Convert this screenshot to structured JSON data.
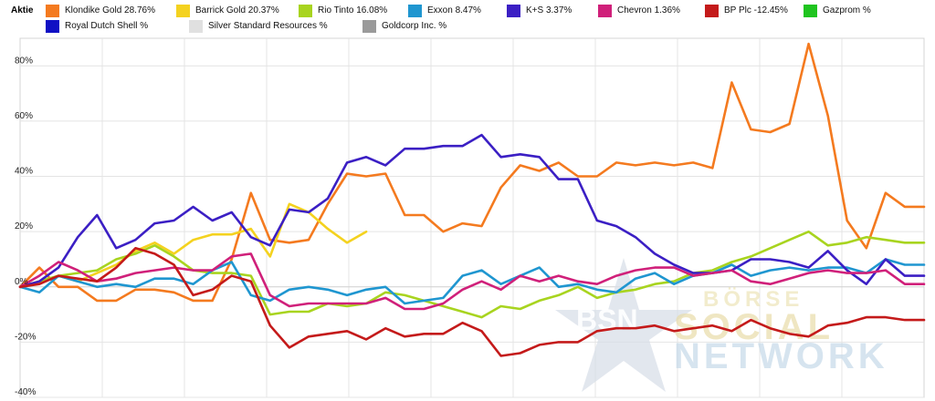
{
  "legend": {
    "heading": "Aktie",
    "items": [
      {
        "label": "Klondike Gold  28.76%",
        "color": "#f47a1f"
      },
      {
        "label": "Barrick Gold  20.37%",
        "color": "#f4d21f"
      },
      {
        "label": "Rio Tinto  16.08%",
        "color": "#a8d41f"
      },
      {
        "label": "Exxon  8.47%",
        "color": "#1f96d0"
      },
      {
        "label": "K+S  3.37%",
        "color": "#3b1fc4"
      },
      {
        "label": "Chevron  1.36%",
        "color": "#d0207a"
      },
      {
        "label": "BP Plc  -12.45%",
        "color": "#c41a1a"
      },
      {
        "label": "Gazprom  %",
        "color": "#1fc41f"
      },
      {
        "label": "Royal Dutch Shell  %",
        "color": "#1010c4"
      },
      {
        "label": "Silver Standard Resources  %",
        "color": "#e0e0e0"
      },
      {
        "label": "Goldcorp Inc.  %",
        "color": "#9a9a9a"
      }
    ]
  },
  "watermark": {
    "line1": "BÖRSE",
    "line2": "SOCIAL",
    "line3": "NETWORK",
    "star_text": "BSN"
  },
  "chart_data": {
    "type": "line",
    "ylim": [
      -40,
      90
    ],
    "yticks": [
      -40,
      -20,
      0,
      20,
      40,
      60,
      80
    ],
    "ytick_labels": [
      "-40%",
      "-20%",
      "0%",
      "20%",
      "40%",
      "60%",
      "80%"
    ],
    "grid": true,
    "legend_position": "top",
    "xlabel": "",
    "ylabel": "",
    "series": [
      {
        "name": "Klondike Gold",
        "color": "#f47a1f",
        "x": [
          0,
          1,
          2,
          3,
          4,
          5,
          6,
          7,
          8,
          9,
          10,
          11,
          12,
          13,
          14,
          15,
          16,
          17,
          18,
          19,
          20,
          21,
          22,
          23,
          24,
          25,
          26,
          27,
          28,
          29,
          30,
          31,
          32,
          33,
          34,
          35,
          36,
          37,
          38,
          39,
          40,
          41,
          42,
          43,
          44,
          45,
          46,
          47
        ],
        "y": [
          0,
          7,
          0,
          0,
          -5,
          -5,
          -1,
          -1,
          -2,
          -5,
          -5,
          10,
          34,
          17,
          16,
          17,
          30,
          41,
          40,
          41,
          26,
          26,
          20,
          23,
          22,
          36,
          44,
          42,
          45,
          40,
          40,
          45,
          44,
          45,
          44,
          45,
          43,
          74,
          57,
          56,
          59,
          88,
          62,
          24,
          14,
          34,
          29,
          29
        ]
      },
      {
        "name": "Barrick Gold",
        "color": "#f4d21f",
        "x": [
          0,
          1,
          2,
          3,
          4,
          5,
          6,
          7,
          8,
          9,
          10,
          11,
          12,
          13,
          14,
          15,
          16,
          17,
          18
        ],
        "y": [
          0,
          2,
          4,
          2,
          5,
          8,
          13,
          16,
          12,
          17,
          19,
          19,
          21,
          11,
          30,
          27,
          21,
          16,
          20
        ]
      },
      {
        "name": "Rio Tinto",
        "color": "#a8d41f",
        "x": [
          0,
          1,
          2,
          3,
          4,
          5,
          6,
          7,
          8,
          9,
          10,
          11,
          12,
          13,
          14,
          15,
          16,
          17,
          18,
          19,
          20,
          21,
          22,
          23,
          24,
          25,
          26,
          27,
          28,
          29,
          30,
          31,
          32,
          33,
          34,
          35,
          36,
          37,
          38,
          39,
          40,
          41,
          42,
          43,
          44,
          45,
          46,
          47
        ],
        "y": [
          0,
          2,
          4,
          5,
          6,
          10,
          12,
          15,
          11,
          6,
          5,
          5,
          4,
          -10,
          -9,
          -9,
          -6,
          -7,
          -6,
          -2,
          -3,
          -5,
          -7,
          -9,
          -11,
          -7,
          -8,
          -5,
          -3,
          0,
          -4,
          -2,
          -1,
          1,
          2,
          5,
          6,
          9,
          11,
          14,
          17,
          20,
          15,
          16,
          18,
          17,
          16,
          16
        ]
      },
      {
        "name": "Exxon",
        "color": "#1f96d0",
        "x": [
          0,
          1,
          2,
          3,
          4,
          5,
          6,
          7,
          8,
          9,
          10,
          11,
          12,
          13,
          14,
          15,
          16,
          17,
          18,
          19,
          20,
          21,
          22,
          23,
          24,
          25,
          26,
          27,
          28,
          29,
          30,
          31,
          32,
          33,
          34,
          35,
          36,
          37,
          38,
          39,
          40,
          41,
          42,
          43,
          44,
          45,
          46,
          47
        ],
        "y": [
          0,
          -2,
          4,
          2,
          0,
          1,
          0,
          3,
          3,
          1,
          6,
          9,
          -3,
          -5,
          -1,
          0,
          -1,
          -3,
          -1,
          0,
          -6,
          -5,
          -4,
          4,
          6,
          1,
          4,
          7,
          0,
          1,
          -1,
          -2,
          3,
          5,
          1,
          4,
          5,
          8,
          4,
          6,
          7,
          6,
          7,
          7,
          5,
          10,
          8,
          8
        ]
      },
      {
        "name": "K+S",
        "color": "#3b1fc4",
        "x": [
          0,
          1,
          2,
          3,
          4,
          5,
          6,
          7,
          8,
          9,
          10,
          11,
          12,
          13,
          14,
          15,
          16,
          17,
          18,
          19,
          20,
          21,
          22,
          23,
          24,
          25,
          26,
          27,
          28,
          29,
          30,
          31,
          32,
          33,
          34,
          35,
          36,
          37,
          38,
          39,
          40,
          41,
          42,
          43,
          44,
          45,
          46,
          47
        ],
        "y": [
          0,
          2,
          7,
          18,
          26,
          14,
          17,
          23,
          24,
          29,
          24,
          27,
          18,
          15,
          28,
          27,
          32,
          45,
          47,
          44,
          50,
          50,
          51,
          51,
          55,
          47,
          48,
          47,
          39,
          39,
          24,
          22,
          18,
          12,
          8,
          5,
          5,
          6,
          10,
          10,
          9,
          7,
          13,
          6,
          1,
          10,
          4,
          4
        ]
      },
      {
        "name": "Chevron",
        "color": "#d0207a",
        "x": [
          0,
          1,
          2,
          3,
          4,
          5,
          6,
          7,
          8,
          9,
          10,
          11,
          12,
          13,
          14,
          15,
          16,
          17,
          18,
          19,
          20,
          21,
          22,
          23,
          24,
          25,
          26,
          27,
          28,
          29,
          30,
          31,
          32,
          33,
          34,
          35,
          36,
          37,
          38,
          39,
          40,
          41,
          42,
          43,
          44,
          45,
          46,
          47
        ],
        "y": [
          0,
          4,
          9,
          6,
          2,
          3,
          5,
          6,
          7,
          6,
          6,
          11,
          12,
          -3,
          -7,
          -6,
          -6,
          -6,
          -6,
          -4,
          -8,
          -8,
          -6,
          -1,
          2,
          -1,
          4,
          2,
          4,
          2,
          1,
          4,
          6,
          7,
          7,
          4,
          5,
          6,
          2,
          1,
          3,
          5,
          6,
          5,
          5,
          6,
          1,
          1
        ]
      },
      {
        "name": "BP Plc",
        "color": "#c41a1a",
        "x": [
          0,
          1,
          2,
          3,
          4,
          5,
          6,
          7,
          8,
          9,
          10,
          11,
          12,
          13,
          14,
          15,
          16,
          17,
          18,
          19,
          20,
          21,
          22,
          23,
          24,
          25,
          26,
          27,
          28,
          29,
          30,
          31,
          32,
          33,
          34,
          35,
          36,
          37,
          38,
          39,
          40,
          41,
          42,
          43,
          44,
          45,
          46,
          47
        ],
        "y": [
          0,
          1,
          4,
          3,
          2,
          7,
          14,
          12,
          8,
          -3,
          -1,
          4,
          2,
          -14,
          -22,
          -18,
          -17,
          -16,
          -19,
          -15,
          -18,
          -17,
          -17,
          -13,
          -16,
          -25,
          -24,
          -21,
          -20,
          -20,
          -16,
          -15,
          -15,
          -14,
          -16,
          -15,
          -14,
          -16,
          -12,
          -15,
          -17,
          -18,
          -14,
          -13,
          -11,
          -11,
          -12,
          -12
        ]
      }
    ]
  }
}
